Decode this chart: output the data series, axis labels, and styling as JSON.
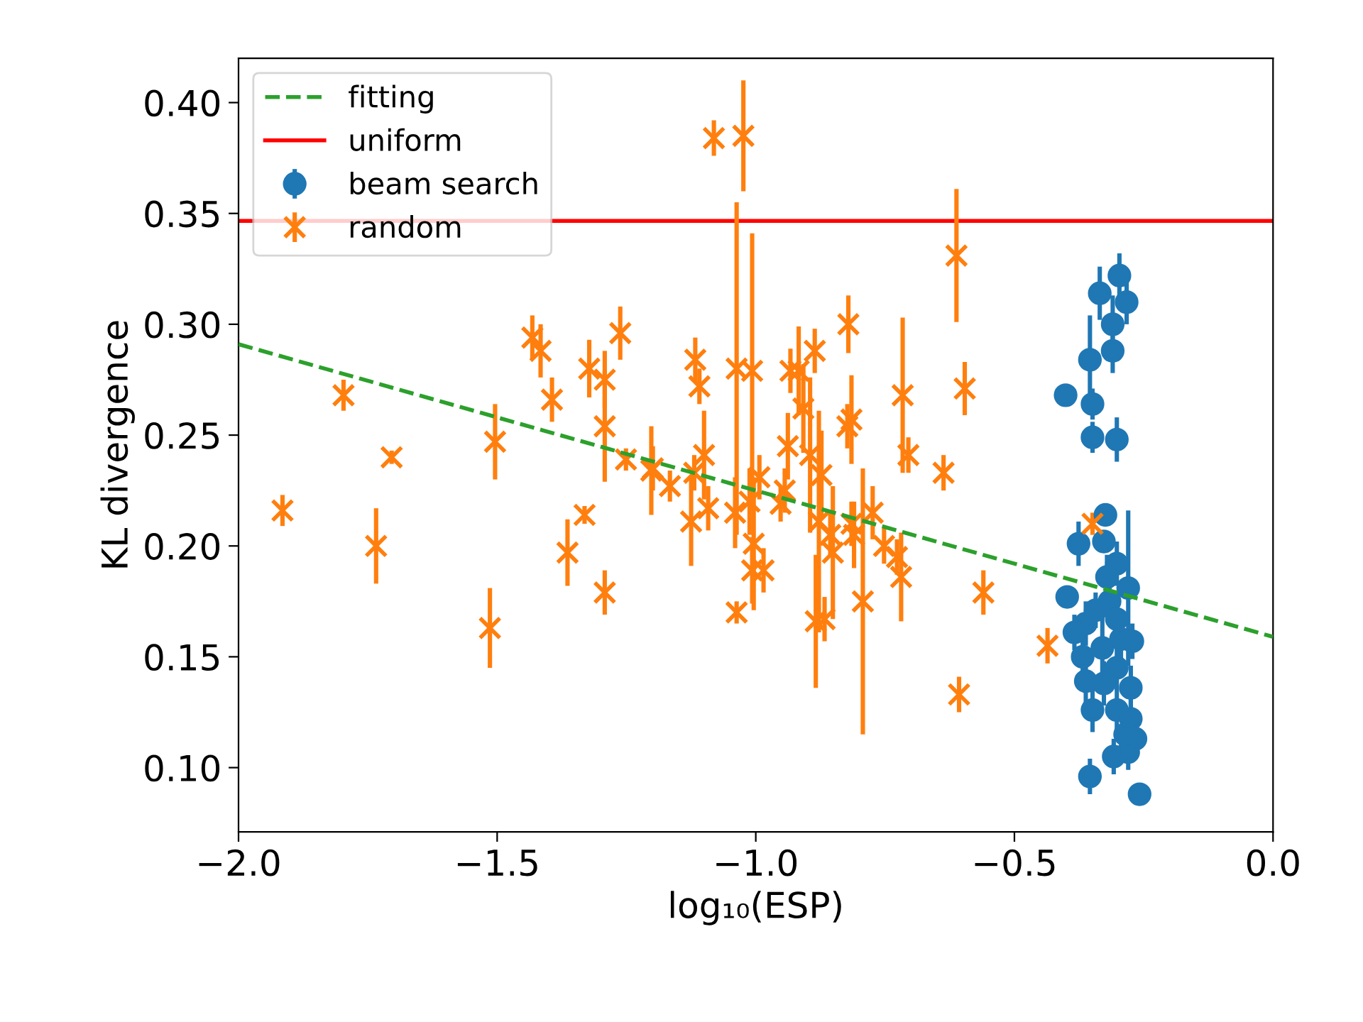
{
  "chart_data": {
    "type": "scatter",
    "xlabel": "log₁₀(ESP)",
    "ylabel": "KL divergence",
    "xlim": [
      -2.0,
      0.0
    ],
    "ylim": [
      0.071,
      0.42
    ],
    "xticks": [
      {
        "value": -2.0,
        "label": "−2.0"
      },
      {
        "value": -1.5,
        "label": "−1.5"
      },
      {
        "value": -1.0,
        "label": "−1.0"
      },
      {
        "value": -0.5,
        "label": "−0.5"
      },
      {
        "value": 0.0,
        "label": "0.0"
      }
    ],
    "yticks": [
      {
        "value": 0.1,
        "label": "0.10"
      },
      {
        "value": 0.15,
        "label": "0.15"
      },
      {
        "value": 0.2,
        "label": "0.20"
      },
      {
        "value": 0.25,
        "label": "0.25"
      },
      {
        "value": 0.3,
        "label": "0.30"
      },
      {
        "value": 0.35,
        "label": "0.35"
      },
      {
        "value": 0.4,
        "label": "0.40"
      }
    ],
    "legend": "top left",
    "ref_lines": [
      {
        "axis": "y",
        "value": 0.3466,
        "label": "uniform",
        "color": "#ff0000",
        "line_style": "solid"
      }
    ],
    "series": [
      {
        "name": "fitting",
        "type": "line",
        "color": "#2ca02c",
        "line_style": "dashed",
        "marker": "none",
        "x": [
          -2.0,
          0.0
        ],
        "values": [
          0.291,
          0.159
        ]
      },
      {
        "name": "beam search",
        "color": "#1f77b4",
        "marker": "circle",
        "x": [
          -0.297,
          -0.335,
          -0.283,
          -0.31,
          -0.31,
          -0.354,
          -0.401,
          -0.349,
          -0.349,
          -0.302,
          -0.324,
          -0.376,
          -0.327,
          -0.302,
          -0.321,
          -0.28,
          -0.398,
          -0.316,
          -0.302,
          -0.272,
          -0.368,
          -0.33,
          -0.302,
          -0.362,
          -0.327,
          -0.275,
          -0.349,
          -0.302,
          -0.275,
          -0.286,
          -0.266,
          -0.308,
          -0.28,
          -0.354,
          -0.258,
          -0.362,
          -0.384,
          -0.294,
          -0.343
        ],
        "values": [
          0.322,
          0.314,
          0.31,
          0.3,
          0.288,
          0.284,
          0.268,
          0.264,
          0.249,
          0.248,
          0.214,
          0.201,
          0.202,
          0.192,
          0.186,
          0.181,
          0.177,
          0.175,
          0.167,
          0.157,
          0.15,
          0.154,
          0.145,
          0.139,
          0.138,
          0.136,
          0.126,
          0.126,
          0.122,
          0.115,
          0.113,
          0.105,
          0.107,
          0.096,
          0.088,
          0.165,
          0.161,
          0.158,
          0.171
        ],
        "errors": [
          0.01,
          0.012,
          0.01,
          0.013,
          0.01,
          0.02,
          0.004,
          0.007,
          0.007,
          0.01,
          0.005,
          0.01,
          0.005,
          0.01,
          0.01,
          0.035,
          0.004,
          0.01,
          0.01,
          0.008,
          0.01,
          0.02,
          0.01,
          0.01,
          0.01,
          0.01,
          0.01,
          0.01,
          0.01,
          0.01,
          0.008,
          0.008,
          0.008,
          0.008,
          0.003,
          0.01,
          0.008,
          0.01,
          0.008
        ]
      },
      {
        "name": "random",
        "color": "#ff7f0e",
        "marker": "cross",
        "x": [
          -1.915,
          -1.797,
          -1.704,
          -1.734,
          -1.504,
          -1.514,
          -1.432,
          -1.416,
          -1.394,
          -1.322,
          -1.292,
          -1.292,
          -1.262,
          -1.251,
          -1.202,
          -1.331,
          -1.364,
          -1.292,
          -1.081,
          -1.024,
          -1.037,
          -1.117,
          -1.109,
          -1.007,
          -0.933,
          -0.917,
          -0.908,
          -0.886,
          -0.821,
          -0.823,
          -0.815,
          -0.716,
          -0.705,
          -0.637,
          -0.612,
          -0.596,
          -1.1,
          -1.166,
          -1.199,
          -1.119,
          -1.125,
          -1.092,
          -1.04,
          -1.012,
          -0.993,
          -1.004,
          -1.007,
          -0.985,
          -1.037,
          -0.938,
          -0.944,
          -0.952,
          -0.895,
          -0.873,
          -0.878,
          -0.856,
          -0.851,
          -0.815,
          -0.81,
          -0.793,
          -0.774,
          -0.752,
          -0.727,
          -0.719,
          -0.884,
          -0.867,
          -0.56,
          -0.607,
          -0.436,
          -0.349
        ],
        "values": [
          0.216,
          0.268,
          0.24,
          0.2,
          0.247,
          0.163,
          0.294,
          0.288,
          0.266,
          0.28,
          0.275,
          0.254,
          0.296,
          0.239,
          0.234,
          0.214,
          0.197,
          0.179,
          0.384,
          0.385,
          0.28,
          0.284,
          0.272,
          0.279,
          0.279,
          0.279,
          0.262,
          0.288,
          0.3,
          0.254,
          0.257,
          0.268,
          0.241,
          0.233,
          0.331,
          0.271,
          0.241,
          0.227,
          0.235,
          0.233,
          0.211,
          0.217,
          0.215,
          0.22,
          0.231,
          0.201,
          0.189,
          0.189,
          0.17,
          0.245,
          0.225,
          0.219,
          0.241,
          0.232,
          0.211,
          0.205,
          0.197,
          0.21,
          0.205,
          0.175,
          0.215,
          0.2,
          0.195,
          0.186,
          0.166,
          0.167,
          0.179,
          0.133,
          0.155,
          0.21
        ],
        "errors": [
          0.007,
          0.007,
          0.003,
          0.017,
          0.017,
          0.018,
          0.01,
          0.012,
          0.01,
          0.013,
          0.013,
          0.025,
          0.012,
          0.005,
          0.02,
          0.004,
          0.015,
          0.01,
          0.008,
          0.025,
          0.075,
          0.01,
          0.008,
          0.062,
          0.01,
          0.02,
          0.02,
          0.01,
          0.013,
          0.01,
          0.02,
          0.035,
          0.008,
          0.008,
          0.03,
          0.012,
          0.02,
          0.007,
          0.01,
          0.008,
          0.02,
          0.01,
          0.016,
          0.015,
          0.01,
          0.03,
          0.015,
          0.01,
          0.005,
          0.015,
          0.01,
          0.008,
          0.035,
          0.02,
          0.05,
          0.01,
          0.03,
          0.01,
          0.015,
          0.06,
          0.012,
          0.008,
          0.008,
          0.02,
          0.03,
          0.01,
          0.01,
          0.008,
          0.008,
          0.005
        ]
      }
    ]
  }
}
